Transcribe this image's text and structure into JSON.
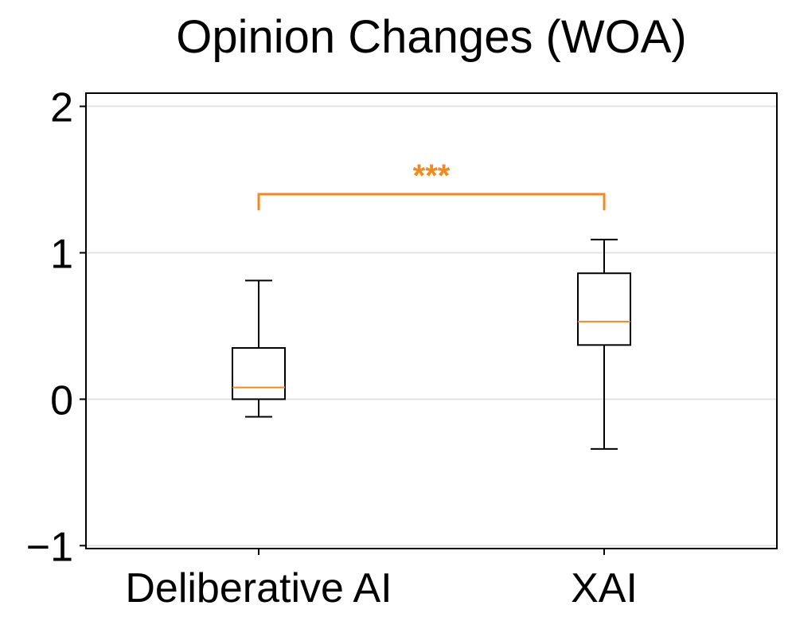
{
  "chart_data": {
    "type": "boxplot",
    "title": "Opinion Changes (WOA)",
    "xlabel": "",
    "ylabel": "",
    "categories": [
      "Deliberative AI",
      "XAI"
    ],
    "y_ticks": [
      -1,
      0,
      1,
      2
    ],
    "y_tick_labels": [
      "−1",
      "0",
      "1",
      "2"
    ],
    "ylim": [
      -1.02,
      2.09
    ],
    "grid": "horizontal",
    "boxes": [
      {
        "label": "Deliberative AI",
        "whisker_low": -0.12,
        "q1": 0.0,
        "median": 0.08,
        "q3": 0.35,
        "whisker_high": 0.81
      },
      {
        "label": "XAI",
        "whisker_low": -0.34,
        "q1": 0.37,
        "median": 0.53,
        "q3": 0.86,
        "whisker_high": 1.09
      }
    ],
    "significance": {
      "between": [
        "Deliberative AI",
        "XAI"
      ],
      "y": 1.4,
      "drop": 0.11,
      "label": "***"
    },
    "colors": {
      "box": "#000000",
      "median": "#f28a20",
      "significance": "#f28a20",
      "grid": "#e3e3e3"
    }
  }
}
